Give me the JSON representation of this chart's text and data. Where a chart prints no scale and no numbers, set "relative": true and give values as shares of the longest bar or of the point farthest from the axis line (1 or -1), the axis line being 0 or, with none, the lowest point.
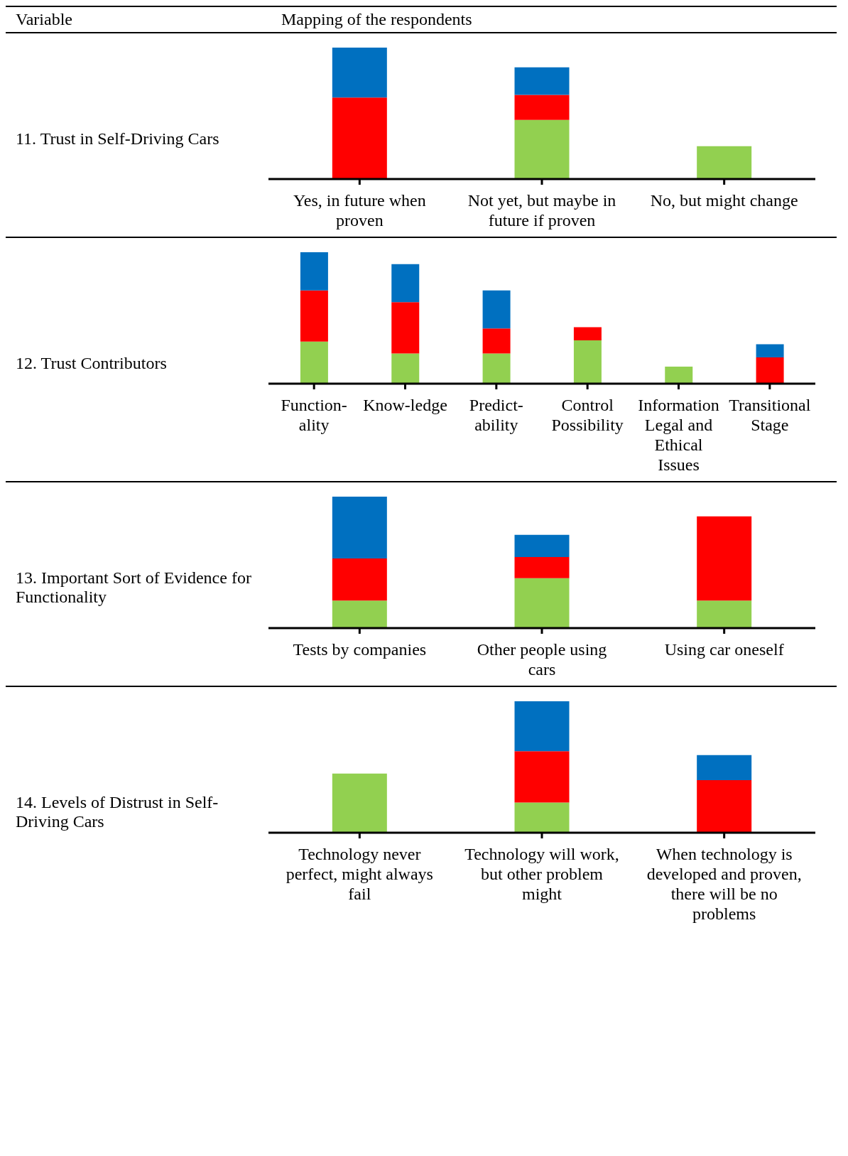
{
  "chart_data": [
    {
      "type": "bar",
      "title": "11. Trust in Self-Driving Cars",
      "annotations": [
        "Variable",
        "Mapping of the respondents"
      ],
      "relative": true,
      "stacked": true,
      "categories": [
        "Yes, in future when proven",
        "Not yet, but maybe in future if proven",
        "No, but might change"
      ],
      "series": [
        {
          "color": "#92d050",
          "values": [
            0,
            0.45,
            0.25
          ]
        },
        {
          "color": "#ff0000",
          "values": [
            0.62,
            0.19,
            0
          ]
        },
        {
          "color": "#0070c0",
          "values": [
            0.38,
            0.21,
            0
          ]
        }
      ]
    },
    {
      "type": "bar",
      "title": "12. Trust Contributors",
      "relative": true,
      "stacked": true,
      "categories": [
        "Function-ality",
        "Know-ledge",
        "Predict-ability",
        "Control Possibility",
        "Information Legal and Ethical Issues",
        "Transitional Stage"
      ],
      "series": [
        {
          "color": "#92d050",
          "values": [
            0.32,
            0.23,
            0.23,
            0.33,
            0.13,
            0
          ]
        },
        {
          "color": "#ff0000",
          "values": [
            0.39,
            0.39,
            0.19,
            0.1,
            0,
            0.2
          ]
        },
        {
          "color": "#0070c0",
          "values": [
            0.29,
            0.29,
            0.29,
            0,
            0,
            0.1
          ]
        }
      ]
    },
    {
      "type": "bar",
      "title": "13. Important Sort of Evidence for Functionality",
      "relative": true,
      "stacked": true,
      "categories": [
        "Tests by companies",
        "Other people using cars",
        "Using car oneself"
      ],
      "series": [
        {
          "color": "#92d050",
          "values": [
            0.21,
            0.38,
            0.21
          ]
        },
        {
          "color": "#ff0000",
          "values": [
            0.32,
            0.16,
            0.64
          ]
        },
        {
          "color": "#0070c0",
          "values": [
            0.47,
            0.17,
            0
          ]
        }
      ]
    },
    {
      "type": "bar",
      "title": "14. Levels of Distrust in Self-Driving Cars",
      "relative": true,
      "stacked": true,
      "categories": [
        "Technology never perfect, might always fail",
        "Technology will work, but other problem might",
        "When technology is developed and proven, there will be no problems"
      ],
      "series": [
        {
          "color": "#92d050",
          "values": [
            0.45,
            0.23,
            0
          ]
        },
        {
          "color": "#ff0000",
          "values": [
            0,
            0.39,
            0.4
          ]
        },
        {
          "color": "#0070c0",
          "values": [
            0,
            0.38,
            0.19
          ]
        }
      ]
    }
  ]
}
